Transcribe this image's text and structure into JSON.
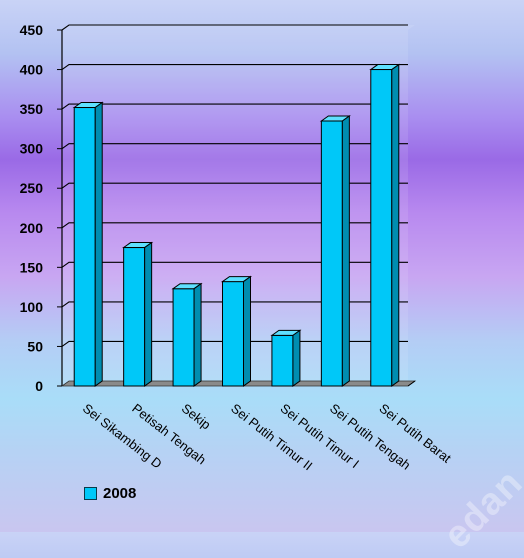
{
  "chart_data": {
    "type": "bar",
    "categories": [
      "Sei Sikambing D",
      "Petisah Tengah",
      "Sekip",
      "Sei Putih Timur II",
      "Sei Putih Timur I",
      "Sei Putih Tengah",
      "Sei Putih Barat"
    ],
    "series": [
      {
        "name": "2008",
        "values": [
          352,
          175,
          123,
          132,
          64,
          335,
          400
        ]
      }
    ],
    "ylim": [
      0,
      450
    ],
    "yticks": [
      0,
      50,
      100,
      150,
      200,
      250,
      300,
      350,
      400,
      450
    ],
    "grid": true,
    "legend_position": "bottom-left",
    "bar_color": "#00c8f8"
  },
  "legend": {
    "label": "2008"
  },
  "watermark": {
    "text": "edan"
  }
}
